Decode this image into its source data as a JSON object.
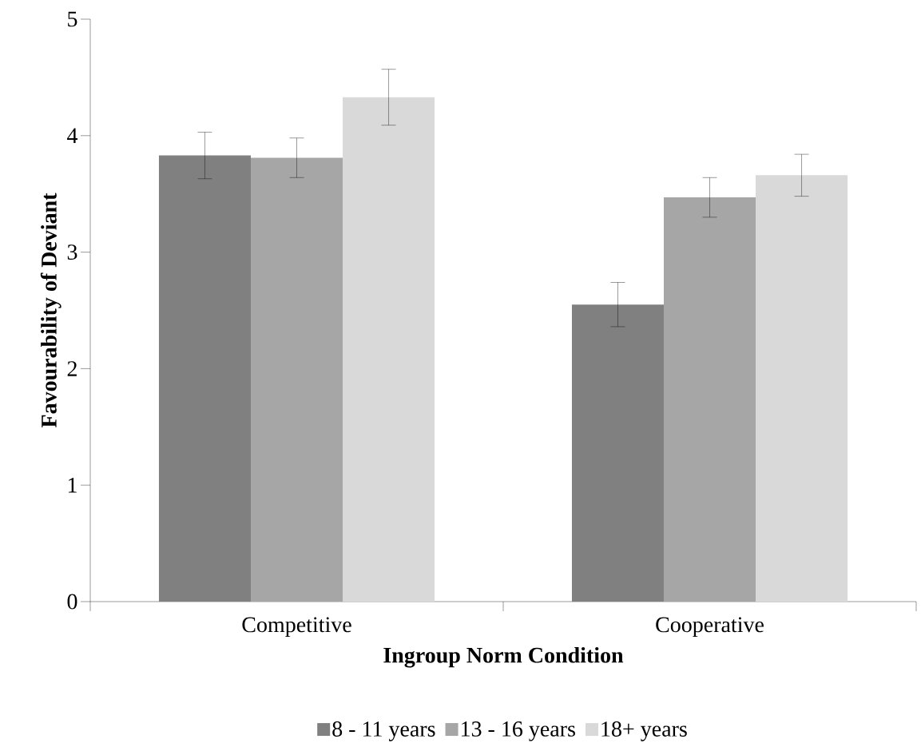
{
  "chart_data": {
    "type": "bar",
    "xlabel": "Ingroup Norm Condition",
    "ylabel": "Favourability of Deviant",
    "categories": [
      "Competitive",
      "Cooperative"
    ],
    "series": [
      {
        "name": "8 - 11 years",
        "color": "#808080",
        "values": [
          3.83,
          2.55
        ],
        "errors": [
          0.2,
          0.19
        ]
      },
      {
        "name": "13 - 16 years",
        "color": "#a6a6a6",
        "values": [
          3.81,
          3.47
        ],
        "errors": [
          0.17,
          0.17
        ]
      },
      {
        "name": "18+ years",
        "color": "#d9d9d9",
        "values": [
          4.33,
          3.66
        ],
        "errors": [
          0.24,
          0.18
        ]
      }
    ],
    "ylim": [
      0,
      5
    ],
    "yticks": [
      0,
      1,
      2,
      3,
      4,
      5
    ],
    "legend": "bottom"
  }
}
